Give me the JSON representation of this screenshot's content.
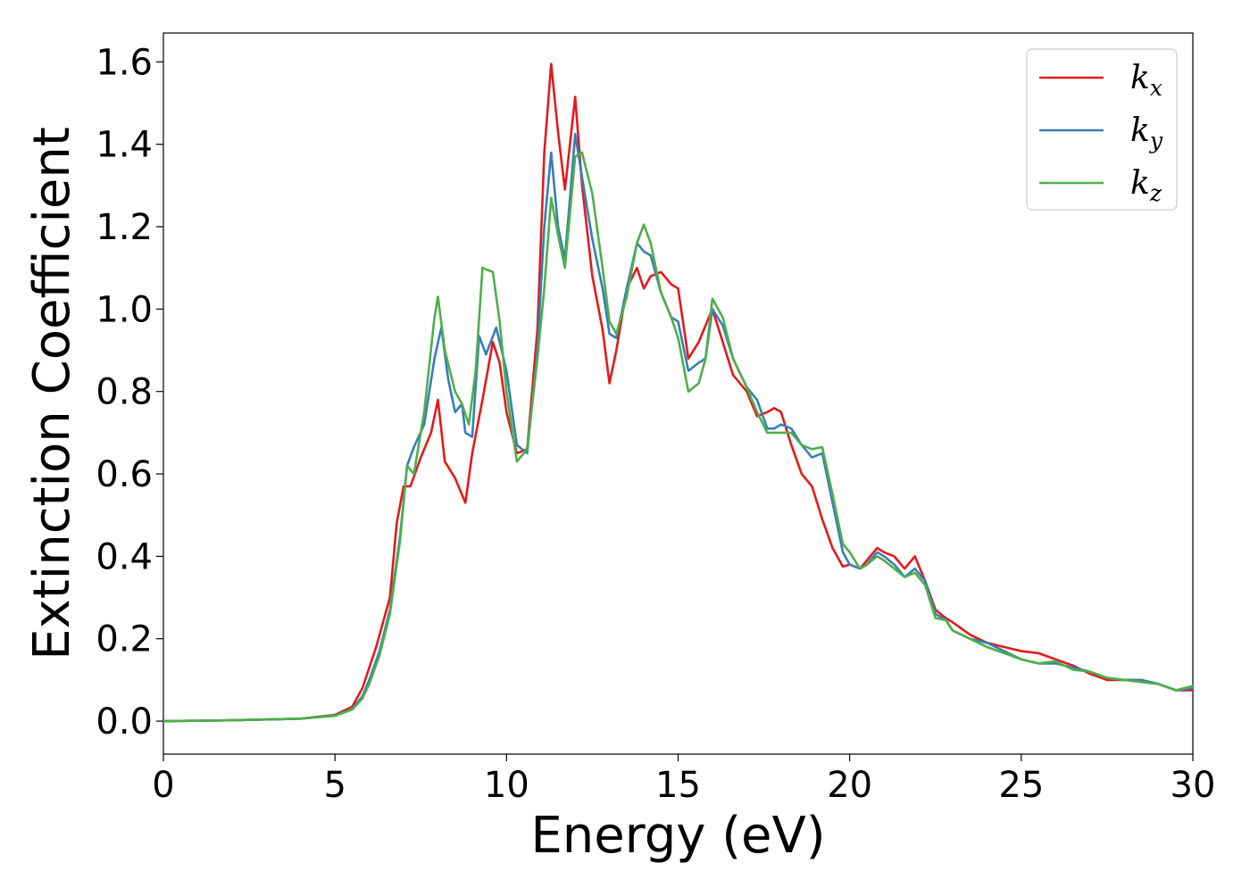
{
  "chart_data": {
    "type": "line",
    "xlabel": "Energy (eV)",
    "ylabel": "Extinction Coefficient",
    "xlim": [
      0,
      30
    ],
    "ylim": [
      -0.08,
      1.67
    ],
    "xticks": [
      "0",
      "5",
      "10",
      "15",
      "20",
      "25",
      "30"
    ],
    "yticks": [
      "0.0",
      "0.2",
      "0.4",
      "0.6",
      "0.8",
      "1.0",
      "1.2",
      "1.4",
      "1.6"
    ],
    "grid": false,
    "legend_position": "top-right",
    "series": [
      {
        "name": "k_x",
        "label_main": "k",
        "label_sub": "x",
        "color": "#e41a1c",
        "x": [
          0,
          2,
          4,
          5,
          5.5,
          5.8,
          6.0,
          6.2,
          6.4,
          6.6,
          6.8,
          7.0,
          7.2,
          7.5,
          7.8,
          8.0,
          8.2,
          8.5,
          8.8,
          9.0,
          9.3,
          9.6,
          9.8,
          10.0,
          10.3,
          10.6,
          10.9,
          11.1,
          11.3,
          11.5,
          11.7,
          12.0,
          12.2,
          12.5,
          12.8,
          13.0,
          13.2,
          13.5,
          13.8,
          14.0,
          14.2,
          14.5,
          14.8,
          15.0,
          15.3,
          15.6,
          15.8,
          16.0,
          16.3,
          16.6,
          17.0,
          17.3,
          17.6,
          17.8,
          18.0,
          18.3,
          18.6,
          18.9,
          19.2,
          19.5,
          19.8,
          20.0,
          20.3,
          20.5,
          20.8,
          21.0,
          21.3,
          21.6,
          21.9,
          22.2,
          22.5,
          22.8,
          23.0,
          23.5,
          24.0,
          24.5,
          25.0,
          25.5,
          26.0,
          26.5,
          27.0,
          27.5,
          28.0,
          28.5,
          29.0,
          29.5,
          30.0
        ],
        "values": [
          0.0,
          0.002,
          0.006,
          0.015,
          0.035,
          0.08,
          0.13,
          0.18,
          0.24,
          0.3,
          0.48,
          0.57,
          0.57,
          0.64,
          0.7,
          0.78,
          0.63,
          0.59,
          0.53,
          0.65,
          0.78,
          0.92,
          0.87,
          0.75,
          0.65,
          0.66,
          0.95,
          1.38,
          1.595,
          1.43,
          1.29,
          1.515,
          1.3,
          1.08,
          0.95,
          0.82,
          0.9,
          1.05,
          1.1,
          1.05,
          1.08,
          1.09,
          1.06,
          1.05,
          0.88,
          0.92,
          0.96,
          1.0,
          0.92,
          0.84,
          0.8,
          0.74,
          0.75,
          0.76,
          0.75,
          0.67,
          0.6,
          0.57,
          0.49,
          0.42,
          0.375,
          0.38,
          0.37,
          0.39,
          0.42,
          0.41,
          0.4,
          0.37,
          0.4,
          0.34,
          0.27,
          0.25,
          0.24,
          0.21,
          0.19,
          0.18,
          0.17,
          0.165,
          0.15,
          0.135,
          0.115,
          0.1,
          0.1,
          0.1,
          0.09,
          0.075,
          0.075
        ]
      },
      {
        "name": "k_y",
        "label_main": "k",
        "label_sub": "y",
        "color": "#377eb8",
        "x": [
          0,
          2,
          4,
          5,
          5.5,
          5.8,
          6.0,
          6.3,
          6.6,
          6.9,
          7.1,
          7.3,
          7.6,
          7.9,
          8.1,
          8.3,
          8.5,
          8.7,
          8.8,
          9.0,
          9.2,
          9.4,
          9.7,
          10.0,
          10.3,
          10.6,
          10.9,
          11.1,
          11.3,
          11.5,
          11.7,
          12.0,
          12.2,
          12.5,
          12.8,
          13.0,
          13.2,
          13.5,
          13.8,
          14.0,
          14.2,
          14.5,
          14.8,
          15.0,
          15.3,
          15.6,
          15.8,
          16.0,
          16.3,
          16.6,
          17.0,
          17.3,
          17.6,
          17.8,
          18.0,
          18.3,
          18.6,
          18.9,
          19.2,
          19.5,
          19.8,
          20.0,
          20.3,
          20.5,
          20.8,
          21.0,
          21.3,
          21.6,
          21.9,
          22.2,
          22.5,
          22.8,
          23.0,
          23.5,
          24.0,
          24.5,
          25.0,
          25.5,
          26.0,
          26.5,
          27.0,
          27.5,
          28.0,
          28.5,
          29.0,
          29.5,
          30.0
        ],
        "values": [
          0.0,
          0.002,
          0.006,
          0.014,
          0.03,
          0.06,
          0.1,
          0.17,
          0.27,
          0.45,
          0.62,
          0.665,
          0.72,
          0.88,
          0.955,
          0.83,
          0.75,
          0.77,
          0.7,
          0.69,
          0.935,
          0.89,
          0.955,
          0.85,
          0.67,
          0.65,
          0.9,
          1.2,
          1.38,
          1.2,
          1.12,
          1.425,
          1.32,
          1.17,
          1.05,
          0.94,
          0.93,
          1.05,
          1.16,
          1.14,
          1.13,
          1.04,
          0.98,
          0.97,
          0.85,
          0.87,
          0.88,
          1.0,
          0.96,
          0.88,
          0.81,
          0.78,
          0.71,
          0.71,
          0.72,
          0.71,
          0.67,
          0.64,
          0.65,
          0.53,
          0.41,
          0.38,
          0.37,
          0.38,
          0.41,
          0.4,
          0.38,
          0.35,
          0.37,
          0.34,
          0.26,
          0.245,
          0.22,
          0.2,
          0.19,
          0.17,
          0.15,
          0.14,
          0.14,
          0.13,
          0.12,
          0.105,
          0.1,
          0.1,
          0.09,
          0.075,
          0.08
        ]
      },
      {
        "name": "k_z",
        "label_main": "k",
        "label_sub": "z",
        "color": "#4daf4a",
        "x": [
          0,
          2,
          4,
          5,
          5.5,
          5.8,
          6.0,
          6.3,
          6.6,
          6.9,
          7.1,
          7.3,
          7.6,
          7.9,
          8.0,
          8.2,
          8.5,
          8.7,
          8.9,
          9.1,
          9.3,
          9.6,
          9.8,
          10.0,
          10.3,
          10.6,
          10.9,
          11.1,
          11.3,
          11.5,
          11.7,
          12.0,
          12.2,
          12.5,
          12.8,
          13.0,
          13.2,
          13.5,
          13.8,
          14.0,
          14.2,
          14.5,
          14.8,
          15.0,
          15.3,
          15.6,
          15.8,
          16.0,
          16.3,
          16.6,
          17.0,
          17.3,
          17.6,
          17.8,
          18.0,
          18.3,
          18.6,
          18.9,
          19.2,
          19.5,
          19.8,
          20.0,
          20.3,
          20.5,
          20.8,
          21.0,
          21.3,
          21.6,
          21.9,
          22.2,
          22.5,
          22.8,
          23.0,
          23.5,
          24.0,
          24.5,
          25.0,
          25.5,
          26.0,
          26.5,
          27.0,
          27.5,
          28.0,
          28.5,
          29.0,
          29.5,
          30.0
        ],
        "values": [
          0.0,
          0.002,
          0.006,
          0.013,
          0.028,
          0.055,
          0.09,
          0.16,
          0.26,
          0.44,
          0.62,
          0.6,
          0.75,
          0.98,
          1.03,
          0.9,
          0.8,
          0.77,
          0.72,
          0.85,
          1.1,
          1.09,
          0.97,
          0.8,
          0.63,
          0.66,
          0.88,
          1.05,
          1.27,
          1.18,
          1.1,
          1.37,
          1.38,
          1.28,
          1.1,
          0.97,
          0.94,
          1.03,
          1.16,
          1.205,
          1.16,
          1.04,
          0.98,
          0.93,
          0.8,
          0.82,
          0.88,
          1.025,
          0.98,
          0.88,
          0.81,
          0.75,
          0.7,
          0.7,
          0.7,
          0.7,
          0.67,
          0.66,
          0.665,
          0.55,
          0.43,
          0.41,
          0.37,
          0.38,
          0.4,
          0.39,
          0.37,
          0.35,
          0.36,
          0.33,
          0.25,
          0.245,
          0.22,
          0.2,
          0.18,
          0.165,
          0.15,
          0.14,
          0.145,
          0.125,
          0.12,
          0.105,
          0.1,
          0.095,
          0.09,
          0.075,
          0.085
        ]
      }
    ]
  }
}
